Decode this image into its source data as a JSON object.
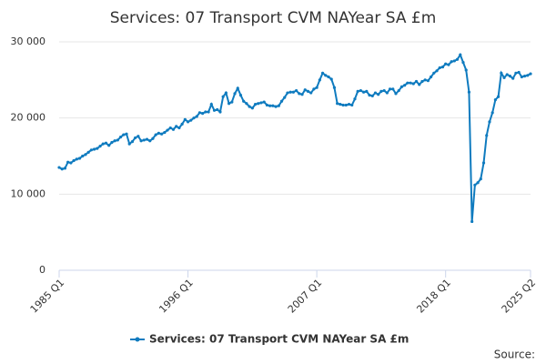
{
  "chart_data": {
    "type": "line",
    "title": "Services: 07 Transport CVM NAYear SA £m",
    "source": "Source:",
    "categories": [
      "1985 Q1",
      null,
      null,
      null,
      null,
      null,
      null,
      null,
      null,
      null,
      null,
      null,
      null,
      null,
      null,
      null,
      null,
      null,
      null,
      null,
      null,
      null,
      null,
      null,
      null,
      null,
      null,
      null,
      null,
      null,
      null,
      null,
      null,
      null,
      null,
      null,
      null,
      null,
      null,
      null,
      null,
      null,
      null,
      null,
      "1996 Q1",
      null,
      null,
      null,
      null,
      null,
      null,
      null,
      null,
      null,
      null,
      null,
      null,
      null,
      null,
      null,
      null,
      null,
      null,
      null,
      null,
      null,
      null,
      null,
      null,
      null,
      null,
      null,
      null,
      null,
      null,
      null,
      null,
      null,
      null,
      null,
      null,
      null,
      null,
      null,
      null,
      null,
      null,
      null,
      "2007 Q1",
      null,
      null,
      null,
      null,
      null,
      null,
      null,
      null,
      null,
      null,
      null,
      null,
      null,
      null,
      null,
      null,
      null,
      null,
      null,
      null,
      null,
      null,
      null,
      null,
      null,
      null,
      null,
      null,
      null,
      null,
      null,
      null,
      null,
      null,
      null,
      null,
      null,
      null,
      null,
      null,
      null,
      null,
      null,
      "2018 Q1",
      null,
      null,
      null,
      null,
      null,
      null,
      null,
      null,
      null,
      null,
      null,
      null,
      null,
      null,
      null,
      null,
      null,
      null,
      null,
      null,
      null,
      null,
      null,
      null,
      null,
      null,
      null,
      null,
      "2025 Q2"
    ],
    "series": [
      {
        "name": "Services: 07 Transport CVM NAYear SA £m",
        "color": "#0f7bbf",
        "values": [
          13500,
          13300,
          13400,
          14200,
          14100,
          14400,
          14600,
          14700,
          15000,
          15200,
          15500,
          15800,
          15900,
          16000,
          16300,
          16600,
          16700,
          16400,
          16800,
          17000,
          17100,
          17500,
          17800,
          17900,
          16600,
          16900,
          17400,
          17600,
          17000,
          17100,
          17200,
          17000,
          17300,
          17800,
          18000,
          17900,
          18100,
          18400,
          18700,
          18500,
          18900,
          18700,
          19200,
          19800,
          19500,
          19700,
          20000,
          20200,
          20700,
          20600,
          20800,
          20800,
          21800,
          21000,
          21100,
          20800,
          22800,
          23300,
          21900,
          22100,
          23200,
          23900,
          23000,
          22200,
          21900,
          21500,
          21300,
          21800,
          21900,
          22000,
          22100,
          21700,
          21600,
          21600,
          21500,
          21600,
          22200,
          22700,
          23300,
          23400,
          23400,
          23600,
          23200,
          23100,
          23700,
          23500,
          23300,
          23800,
          24000,
          25000,
          25900,
          25600,
          25400,
          25100,
          24000,
          21900,
          21800,
          21700,
          21700,
          21800,
          21700,
          22500,
          23500,
          23600,
          23400,
          23500,
          23000,
          22900,
          23300,
          23100,
          23500,
          23600,
          23300,
          23800,
          23800,
          23200,
          23600,
          24100,
          24300,
          24600,
          24600,
          24500,
          24800,
          24400,
          24800,
          25000,
          24900,
          25400,
          25900,
          26200,
          26600,
          26700,
          27100,
          27000,
          27400,
          27500,
          27700,
          28300,
          27300,
          26300,
          23400,
          6400,
          11200,
          11500,
          12000,
          14100,
          17700,
          19500,
          20700,
          22400,
          22800,
          25900,
          25300,
          25700,
          25500,
          25200,
          25900,
          26000,
          25400,
          25500,
          25600,
          25800
        ]
      }
    ],
    "ylim": [
      0,
      30000
    ],
    "yticks": [
      0,
      {
        "value": 10000,
        "label": "10 000"
      },
      {
        "value": 20000,
        "label": "20 000"
      },
      {
        "value": 30000,
        "label": "30 000"
      }
    ],
    "grid": true
  }
}
